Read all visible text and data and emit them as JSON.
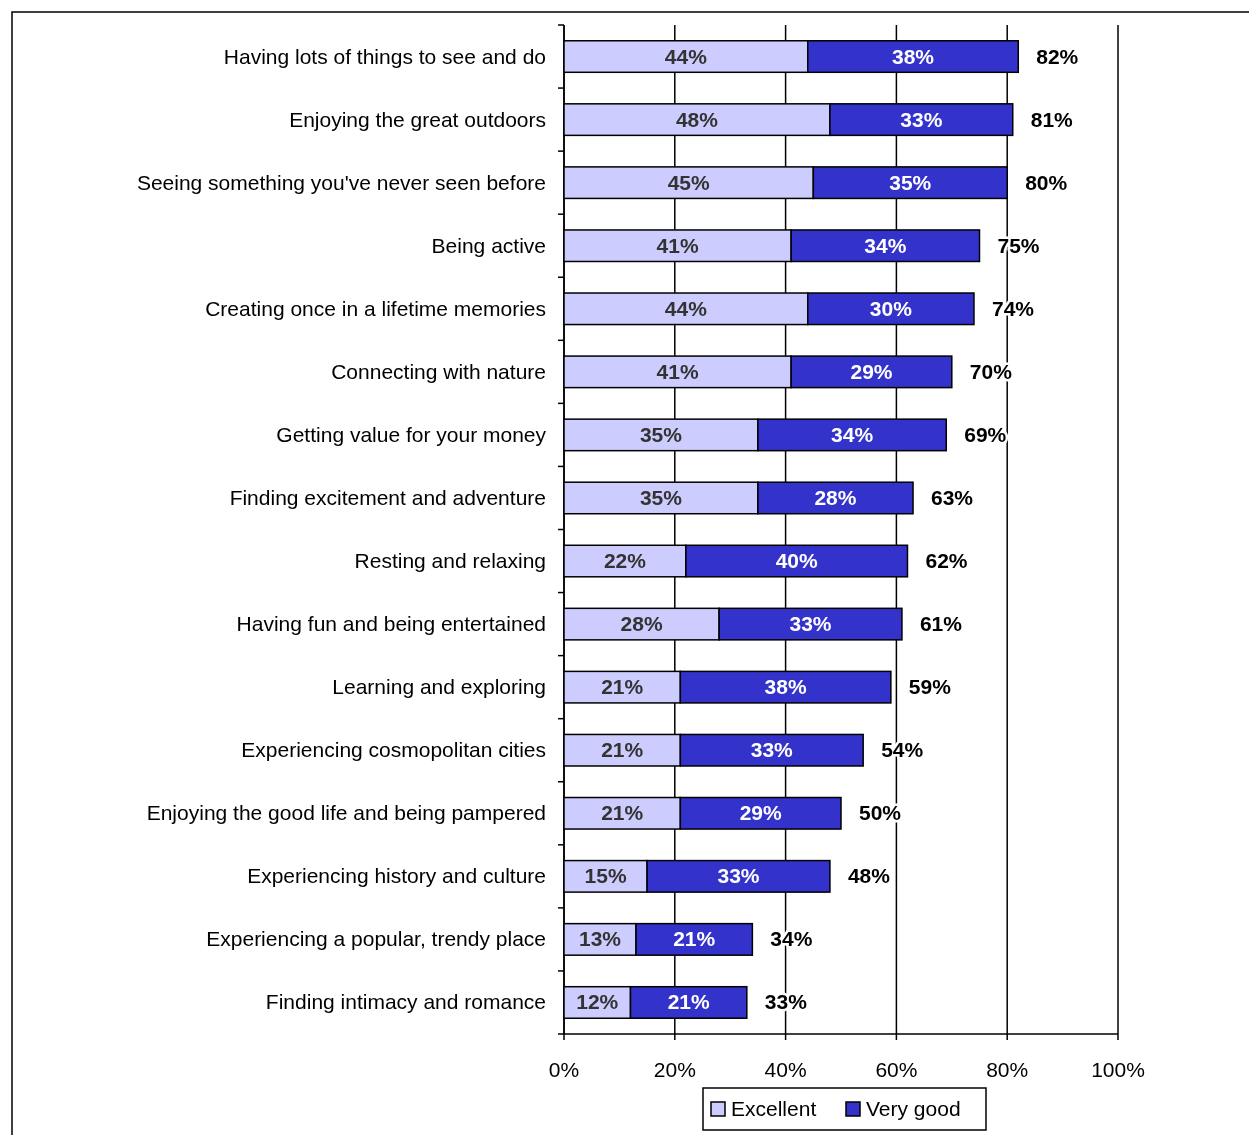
{
  "chart_data": {
    "type": "bar",
    "orientation": "horizontal",
    "stacked": true,
    "categories": [
      "Having lots of things to see and do",
      "Enjoying the great outdoors",
      "Seeing something you've never seen before",
      "Being active",
      "Creating once in a lifetime memories",
      "Connecting with nature",
      "Getting value for your money",
      "Finding excitement and adventure",
      "Resting and relaxing",
      "Having fun and being entertained",
      "Learning and exploring",
      "Experiencing cosmopolitan cities",
      "Enjoying the good life and being pampered",
      "Experiencing history and culture",
      "Experiencing a popular, trendy place",
      "Finding intimacy and romance"
    ],
    "series": [
      {
        "name": "Excellent",
        "color": "#ccccff",
        "values": [
          44,
          48,
          45,
          41,
          44,
          41,
          35,
          35,
          22,
          28,
          21,
          21,
          21,
          15,
          13,
          12
        ],
        "value_labels": [
          "44%",
          "48%",
          "45%",
          "41%",
          "44%",
          "41%",
          "35%",
          "35%",
          "22%",
          "28%",
          "21%",
          "21%",
          "21%",
          "15%",
          "13%",
          "12%"
        ]
      },
      {
        "name": "Very good",
        "color": "#3333cc",
        "values": [
          38,
          33,
          35,
          34,
          30,
          29,
          34,
          28,
          40,
          33,
          38,
          33,
          29,
          33,
          21,
          21
        ],
        "value_labels": [
          "38%",
          "33%",
          "35%",
          "34%",
          "30%",
          "29%",
          "34%",
          "28%",
          "40%",
          "33%",
          "38%",
          "33%",
          "29%",
          "33%",
          "21%",
          "21%"
        ]
      }
    ],
    "totals": [
      "82%",
      "81%",
      "80%",
      "75%",
      "74%",
      "70%",
      "69%",
      "63%",
      "62%",
      "61%",
      "59%",
      "54%",
      "50%",
      "48%",
      "34%",
      "33%"
    ],
    "xlim": [
      0,
      100
    ],
    "xticks": [
      {
        "value": 0,
        "label": "0%"
      },
      {
        "value": 20,
        "label": "20%"
      },
      {
        "value": 40,
        "label": "40%"
      },
      {
        "value": 60,
        "label": "60%"
      },
      {
        "value": 80,
        "label": "80%"
      },
      {
        "value": 100,
        "label": "100%"
      }
    ],
    "grid": "x",
    "legend": "bottom"
  }
}
